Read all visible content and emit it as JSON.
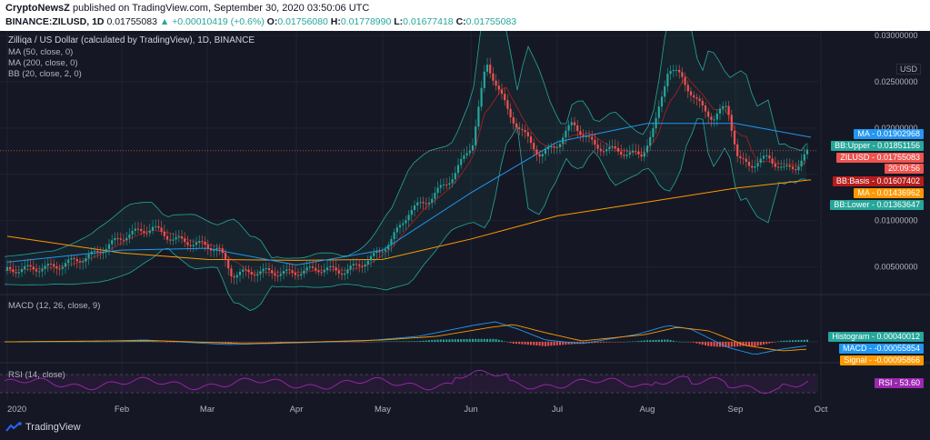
{
  "header": {
    "publisher": "CryptoNewsZ",
    "published_text": "published on TradingView.com, September 30, 2020 03:50:06 UTC",
    "symbol": "BINANCE:ZILUSD, 1D",
    "last": "0.01755083",
    "change": "▲ +0.00010419 (+0.6%)",
    "o_label": "O:",
    "o_value": "0.01756080",
    "h_label": "H:",
    "h_value": "0.01778990",
    "l_label": "L:",
    "l_value": "0.01677418",
    "c_label": "C:",
    "c_value": "0.01755083"
  },
  "legend": {
    "title": "Zilliqa / US Dollar (calculated by TradingView), 1D, BINANCE",
    "ma50": "MA (50, close, 0)",
    "ma200": "MA (200, close, 0)",
    "bb": "BB (20, close, 2, 0)",
    "macd": "MACD (12, 26, close, 9)",
    "rsi": "RSI (14, close)"
  },
  "axis": {
    "currency": "USD",
    "price_ticks": [
      "0.03000000",
      "0.02500000",
      "0.02000000",
      "0.01000000",
      "0.00500000"
    ],
    "x_ticks": [
      "2020",
      "Feb",
      "Mar",
      "Apr",
      "May",
      "Jun",
      "Jul",
      "Aug",
      "Sep",
      "Oct"
    ]
  },
  "tags": [
    {
      "label": "MA",
      "value": "0.01902968",
      "color": "#2196f3"
    },
    {
      "label": "BB:Upper",
      "value": "0.01851156",
      "color": "#26a69a"
    },
    {
      "label": "ZILUSD",
      "value": "0.01755083",
      "color": "#ef5350"
    },
    {
      "label": "",
      "value": "20:09:56",
      "color": "#ef5350"
    },
    {
      "label": "BB:Basis",
      "value": "0.01607402",
      "color": "#b71c1c"
    },
    {
      "label": "MA",
      "value": "0.01436962",
      "color": "#ff9800"
    },
    {
      "label": "BB:Lower",
      "value": "0.01363647",
      "color": "#26a69a"
    }
  ],
  "macd_tags": [
    {
      "label": "Histogram",
      "value": "0.00040012",
      "color": "#26a69a"
    },
    {
      "label": "MACD",
      "value": "-0.00055854",
      "color": "#2196f3"
    },
    {
      "label": "Signal",
      "value": "-0.00095866",
      "color": "#ff9800"
    }
  ],
  "rsi_tag": {
    "label": "RSI",
    "value": "53.60",
    "color": "#9c27b0"
  },
  "footer": {
    "brand": "TradingView"
  },
  "colors": {
    "up": "#26a69a",
    "down": "#ef5350",
    "ma50": "#2196f3",
    "ma200": "#ff9800",
    "bb": "#26a69a",
    "basis": "#b71c1c",
    "rsi": "#9c27b0"
  },
  "chart_data": {
    "type": "line",
    "title": "Zilliqa / US Dollar (calculated by TradingView), 1D, BINANCE",
    "x": [
      "2020",
      "Feb",
      "Mar",
      "Apr",
      "May",
      "Jun",
      "Jul",
      "Aug",
      "Sep",
      "Oct"
    ],
    "series": [
      {
        "name": "ZILUSD",
        "values": [
          0.0045,
          0.0082,
          0.006,
          0.0048,
          0.0082,
          0.0255,
          0.0195,
          0.0265,
          0.016,
          0.0175
        ]
      },
      {
        "name": "MA (50, close, 0)",
        "values": [
          0.0055,
          0.0068,
          0.007,
          0.0052,
          0.0068,
          0.013,
          0.0185,
          0.0205,
          0.0205,
          0.019
        ]
      },
      {
        "name": "MA (200, close, 0)",
        "values": [
          0.0083,
          0.0065,
          0.0058,
          0.0057,
          0.0058,
          0.008,
          0.0105,
          0.012,
          0.0135,
          0.0144
        ]
      }
    ],
    "ylim": [
      0.002,
      0.0305
    ],
    "grid": true
  }
}
